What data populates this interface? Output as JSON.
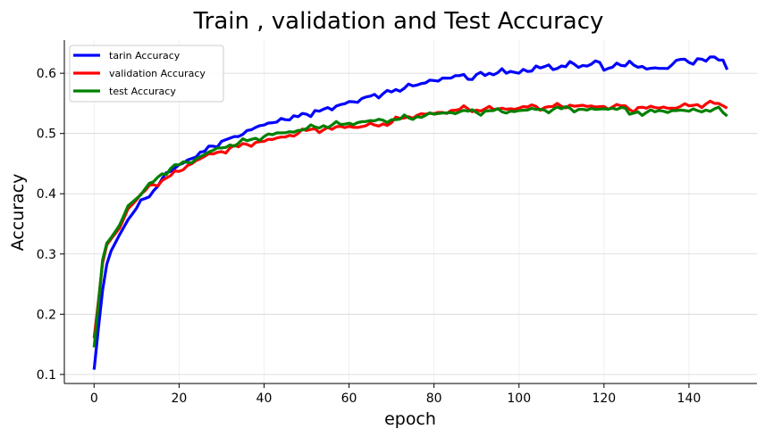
{
  "chart_data": {
    "type": "line",
    "title": "Train , validation and Test Accuracy",
    "xlabel": "epoch",
    "ylabel": "Accuracy",
    "xlim": [
      -7,
      156
    ],
    "ylim": [
      0.085,
      0.655
    ],
    "xticks": [
      0,
      20,
      40,
      60,
      80,
      100,
      120,
      140
    ],
    "yticks": [
      0.1,
      0.2,
      0.3,
      0.4,
      0.5,
      0.6
    ],
    "grid": true,
    "legend_position": "top-left",
    "series": [
      {
        "name": "tarin Accuracy",
        "color": "#0000ff",
        "keypoints": [
          [
            0,
            0.108
          ],
          [
            1,
            0.175
          ],
          [
            2,
            0.24
          ],
          [
            3,
            0.283
          ],
          [
            4,
            0.305
          ],
          [
            6,
            0.332
          ],
          [
            8,
            0.357
          ],
          [
            10,
            0.376
          ],
          [
            12,
            0.392
          ],
          [
            14,
            0.405
          ],
          [
            16,
            0.425
          ],
          [
            18,
            0.437
          ],
          [
            20,
            0.448
          ],
          [
            22,
            0.456
          ],
          [
            25,
            0.469
          ],
          [
            28,
            0.479
          ],
          [
            30,
            0.487
          ],
          [
            33,
            0.495
          ],
          [
            36,
            0.505
          ],
          [
            38,
            0.51
          ],
          [
            40,
            0.514
          ],
          [
            43,
            0.519
          ],
          [
            45,
            0.523
          ],
          [
            48,
            0.528
          ],
          [
            50,
            0.532
          ],
          [
            53,
            0.537
          ],
          [
            55,
            0.543
          ],
          [
            58,
            0.548
          ],
          [
            60,
            0.553
          ],
          [
            63,
            0.558
          ],
          [
            65,
            0.562
          ],
          [
            68,
            0.566
          ],
          [
            70,
            0.569
          ],
          [
            73,
            0.575
          ],
          [
            75,
            0.579
          ],
          [
            78,
            0.584
          ],
          [
            80,
            0.588
          ],
          [
            83,
            0.592
          ],
          [
            85,
            0.596
          ],
          [
            87,
            0.598
          ],
          [
            88,
            0.59
          ],
          [
            90,
            0.598
          ],
          [
            93,
            0.6
          ],
          [
            95,
            0.601
          ],
          [
            98,
            0.603
          ],
          [
            100,
            0.6
          ],
          [
            102,
            0.603
          ],
          [
            104,
            0.612
          ],
          [
            106,
            0.611
          ],
          [
            108,
            0.606
          ],
          [
            110,
            0.612
          ],
          [
            113,
            0.615
          ],
          [
            115,
            0.613
          ],
          [
            117,
            0.615
          ],
          [
            119,
            0.618
          ],
          [
            120,
            0.605
          ],
          [
            122,
            0.61
          ],
          [
            124,
            0.613
          ],
          [
            126,
            0.62
          ],
          [
            128,
            0.61
          ],
          [
            130,
            0.607
          ],
          [
            132,
            0.609
          ],
          [
            134,
            0.608
          ],
          [
            136,
            0.614
          ],
          [
            138,
            0.623
          ],
          [
            140,
            0.618
          ],
          [
            142,
            0.624
          ],
          [
            144,
            0.62
          ],
          [
            146,
            0.627
          ],
          [
            148,
            0.622
          ],
          [
            149,
            0.606
          ]
        ]
      },
      {
        "name": "validation Accuracy",
        "color": "#ff0000",
        "keypoints": [
          [
            0,
            0.16
          ],
          [
            1,
            0.22
          ],
          [
            2,
            0.285
          ],
          [
            3,
            0.315
          ],
          [
            4,
            0.325
          ],
          [
            6,
            0.343
          ],
          [
            8,
            0.375
          ],
          [
            10,
            0.39
          ],
          [
            12,
            0.405
          ],
          [
            14,
            0.415
          ],
          [
            16,
            0.422
          ],
          [
            18,
            0.43
          ],
          [
            20,
            0.437
          ],
          [
            22,
            0.447
          ],
          [
            24,
            0.455
          ],
          [
            26,
            0.462
          ],
          [
            28,
            0.466
          ],
          [
            30,
            0.47
          ],
          [
            32,
            0.476
          ],
          [
            34,
            0.478
          ],
          [
            36,
            0.482
          ],
          [
            38,
            0.485
          ],
          [
            40,
            0.487
          ],
          [
            42,
            0.49
          ],
          [
            44,
            0.494
          ],
          [
            46,
            0.497
          ],
          [
            48,
            0.5
          ],
          [
            50,
            0.505
          ],
          [
            52,
            0.508
          ],
          [
            54,
            0.506
          ],
          [
            56,
            0.507
          ],
          [
            58,
            0.512
          ],
          [
            60,
            0.512
          ],
          [
            62,
            0.51
          ],
          [
            64,
            0.513
          ],
          [
            66,
            0.514
          ],
          [
            68,
            0.516
          ],
          [
            70,
            0.518
          ],
          [
            72,
            0.525
          ],
          [
            74,
            0.528
          ],
          [
            76,
            0.53
          ],
          [
            78,
            0.532
          ],
          [
            80,
            0.533
          ],
          [
            82,
            0.535
          ],
          [
            84,
            0.538
          ],
          [
            86,
            0.54
          ],
          [
            88,
            0.541
          ],
          [
            90,
            0.539
          ],
          [
            92,
            0.541
          ],
          [
            94,
            0.54
          ],
          [
            96,
            0.542
          ],
          [
            98,
            0.541
          ],
          [
            100,
            0.542
          ],
          [
            102,
            0.544
          ],
          [
            104,
            0.545
          ],
          [
            106,
            0.543
          ],
          [
            108,
            0.545
          ],
          [
            110,
            0.545
          ],
          [
            112,
            0.547
          ],
          [
            114,
            0.546
          ],
          [
            116,
            0.545
          ],
          [
            118,
            0.544
          ],
          [
            120,
            0.545
          ],
          [
            122,
            0.544
          ],
          [
            124,
            0.546
          ],
          [
            126,
            0.54
          ],
          [
            128,
            0.543
          ],
          [
            130,
            0.542
          ],
          [
            132,
            0.543
          ],
          [
            134,
            0.544
          ],
          [
            136,
            0.542
          ],
          [
            138,
            0.545
          ],
          [
            140,
            0.546
          ],
          [
            142,
            0.548
          ],
          [
            144,
            0.549
          ],
          [
            146,
            0.55
          ],
          [
            148,
            0.546
          ],
          [
            149,
            0.542
          ]
        ]
      },
      {
        "name": "test Accuracy",
        "color": "#008000",
        "keypoints": [
          [
            0,
            0.145
          ],
          [
            1,
            0.215
          ],
          [
            2,
            0.29
          ],
          [
            3,
            0.318
          ],
          [
            4,
            0.327
          ],
          [
            6,
            0.348
          ],
          [
            8,
            0.38
          ],
          [
            10,
            0.392
          ],
          [
            12,
            0.408
          ],
          [
            14,
            0.42
          ],
          [
            16,
            0.433
          ],
          [
            18,
            0.442
          ],
          [
            20,
            0.448
          ],
          [
            22,
            0.452
          ],
          [
            24,
            0.458
          ],
          [
            26,
            0.465
          ],
          [
            28,
            0.472
          ],
          [
            30,
            0.476
          ],
          [
            32,
            0.481
          ],
          [
            34,
            0.484
          ],
          [
            36,
            0.488
          ],
          [
            38,
            0.492
          ],
          [
            40,
            0.495
          ],
          [
            42,
            0.498
          ],
          [
            44,
            0.501
          ],
          [
            46,
            0.503
          ],
          [
            48,
            0.505
          ],
          [
            50,
            0.508
          ],
          [
            52,
            0.511
          ],
          [
            54,
            0.513
          ],
          [
            56,
            0.514
          ],
          [
            58,
            0.515
          ],
          [
            60,
            0.517
          ],
          [
            62,
            0.518
          ],
          [
            64,
            0.52
          ],
          [
            66,
            0.521
          ],
          [
            68,
            0.522
          ],
          [
            70,
            0.523
          ],
          [
            72,
            0.524
          ],
          [
            74,
            0.526
          ],
          [
            76,
            0.528
          ],
          [
            78,
            0.53
          ],
          [
            80,
            0.532
          ],
          [
            82,
            0.534
          ],
          [
            84,
            0.535
          ],
          [
            86,
            0.536
          ],
          [
            88,
            0.537
          ],
          [
            90,
            0.535
          ],
          [
            92,
            0.537
          ],
          [
            94,
            0.538
          ],
          [
            96,
            0.536
          ],
          [
            98,
            0.537
          ],
          [
            100,
            0.538
          ],
          [
            102,
            0.539
          ],
          [
            104,
            0.54
          ],
          [
            106,
            0.539
          ],
          [
            108,
            0.54
          ],
          [
            110,
            0.541
          ],
          [
            112,
            0.542
          ],
          [
            114,
            0.54
          ],
          [
            116,
            0.539
          ],
          [
            118,
            0.54
          ],
          [
            120,
            0.541
          ],
          [
            122,
            0.542
          ],
          [
            124,
            0.543
          ],
          [
            126,
            0.532
          ],
          [
            128,
            0.536
          ],
          [
            130,
            0.535
          ],
          [
            132,
            0.536
          ],
          [
            134,
            0.537
          ],
          [
            136,
            0.538
          ],
          [
            138,
            0.539
          ],
          [
            140,
            0.537
          ],
          [
            142,
            0.538
          ],
          [
            144,
            0.539
          ],
          [
            146,
            0.541
          ],
          [
            148,
            0.535
          ],
          [
            149,
            0.529
          ]
        ]
      }
    ]
  }
}
